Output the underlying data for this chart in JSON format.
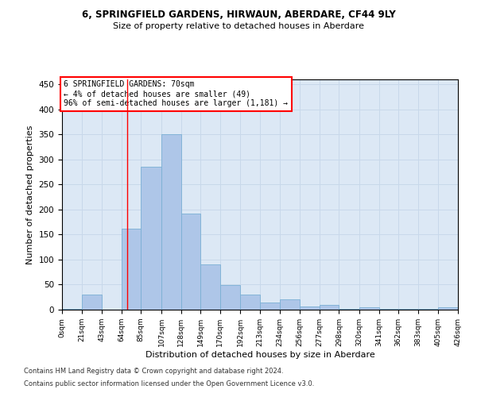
{
  "title1": "6, SPRINGFIELD GARDENS, HIRWAUN, ABERDARE, CF44 9LY",
  "title2": "Size of property relative to detached houses in Aberdare",
  "xlabel": "Distribution of detached houses by size in Aberdare",
  "ylabel": "Number of detached properties",
  "bar_color": "#aec6e8",
  "bar_edge_color": "#7aafd4",
  "grid_color": "#c8d8ea",
  "background_color": "#dce8f5",
  "annotation_text": "6 SPRINGFIELD GARDENS: 70sqm\n← 4% of detached houses are smaller (49)\n96% of semi-detached houses are larger (1,181) →",
  "annotation_box_color": "white",
  "annotation_border_color": "red",
  "vline_x": 70,
  "vline_color": "red",
  "bins": [
    0,
    21,
    43,
    64,
    85,
    107,
    128,
    149,
    170,
    192,
    213,
    234,
    256,
    277,
    298,
    320,
    341,
    362,
    383,
    405,
    426
  ],
  "bin_labels": [
    "0sqm",
    "21sqm",
    "43sqm",
    "64sqm",
    "85sqm",
    "107sqm",
    "128sqm",
    "149sqm",
    "170sqm",
    "192sqm",
    "213sqm",
    "234sqm",
    "256sqm",
    "277sqm",
    "298sqm",
    "320sqm",
    "341sqm",
    "362sqm",
    "383sqm",
    "405sqm",
    "426sqm"
  ],
  "bar_heights": [
    2,
    30,
    0,
    162,
    285,
    350,
    192,
    90,
    49,
    30,
    14,
    20,
    7,
    10,
    2,
    5,
    2,
    2,
    1,
    4
  ],
  "ylim": [
    0,
    460
  ],
  "yticks": [
    0,
    50,
    100,
    150,
    200,
    250,
    300,
    350,
    400,
    450
  ],
  "footer1": "Contains HM Land Registry data © Crown copyright and database right 2024.",
  "footer2": "Contains public sector information licensed under the Open Government Licence v3.0."
}
